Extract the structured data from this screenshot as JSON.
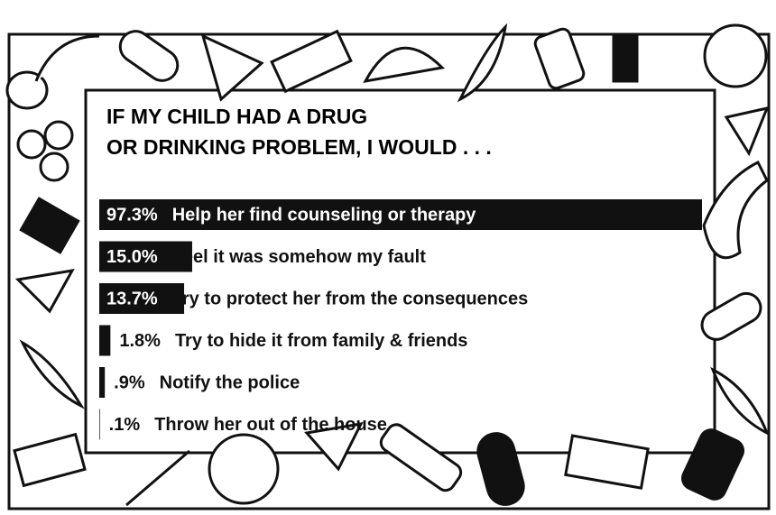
{
  "chart_data": {
    "type": "bar",
    "orientation": "horizontal",
    "title": [
      "IF MY CHILD HAD A DRUG",
      "OR DRINKING PROBLEM, I WOULD . . ."
    ],
    "categories": [
      "Help her find counseling or therapy",
      "Feel it was somehow my fault",
      "Try to protect her from the consequences",
      "Try to hide it from family & friends",
      "Notify the police",
      "Throw her out of the house"
    ],
    "values": [
      97.3,
      15.0,
      13.7,
      1.8,
      0.9,
      0.1
    ],
    "value_labels": [
      "97.3%",
      "15.0%",
      "13.7%",
      "1.8%",
      ".9%",
      ".1%"
    ],
    "color": "#111111"
  }
}
